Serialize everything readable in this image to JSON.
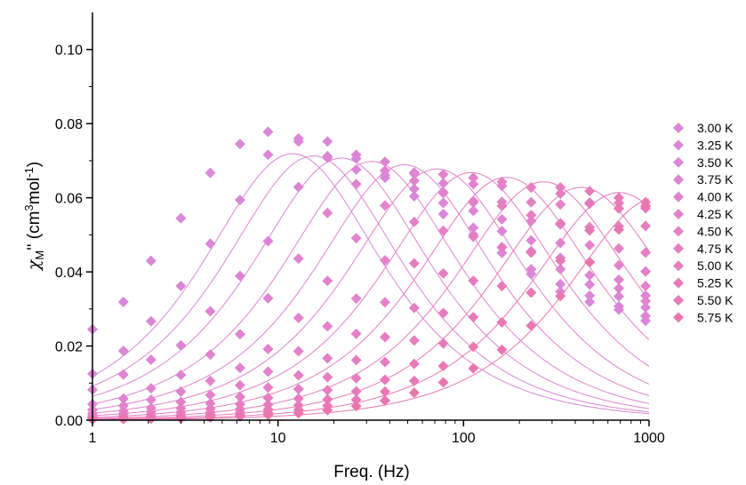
{
  "chart_data": {
    "type": "scatter",
    "title": "",
    "xlabel": "Freq. (Hz)",
    "ylabel": {
      "chi": "χ",
      "sub_m": "M",
      "primes": "''",
      "unit_open": " (cm",
      "sup_3": "3",
      "unit_mid": "mol",
      "sup_minus1": "-1",
      "unit_close": ")"
    },
    "x_scale": "log",
    "xlim": [
      1,
      1000
    ],
    "ylim": [
      0,
      0.11
    ],
    "x_ticks": [
      1,
      10,
      100,
      1000
    ],
    "x_tick_labels": [
      "1",
      "10",
      "100",
      "1000"
    ],
    "y_ticks": [
      0,
      0.02,
      0.04,
      0.06,
      0.08,
      0.1
    ],
    "y_tick_labels": [
      "0.00",
      "0.02",
      "0.04",
      "0.06",
      "0.08",
      "0.10"
    ],
    "grid": false,
    "legend_position": "right",
    "marker": "diamond",
    "x": [
      1,
      1.468,
      2.069,
      2.995,
      4.318,
      6.241,
      8.841,
      12.9,
      18.48,
      26.4,
      37.71,
      54.21,
      77.77,
      112.9,
      161,
      231.4,
      332.6,
      478.2,
      687.1,
      957.4
    ],
    "series": [
      {
        "name": "3.00 K",
        "color": "#d987d9",
        "points": [
          0.0245,
          0.0319,
          0.043,
          0.0545,
          0.0667,
          0.0745,
          0.0778,
          0.076,
          0.0752,
          0.0706,
          0.0661,
          0.0604,
          0.0556,
          0.0501,
          0.0451,
          0.0394,
          0.0347,
          0.0319,
          0.0298,
          0.0268
        ]
      },
      {
        "name": "3.25 K",
        "color": "#db86d6",
        "points": [
          0.0125,
          0.0187,
          0.0267,
          0.0362,
          0.0476,
          0.0594,
          0.0716,
          0.0752,
          0.0712,
          0.0676,
          0.0654,
          0.0624,
          0.0586,
          0.0519,
          0.0467,
          0.0407,
          0.0367,
          0.0336,
          0.0307,
          0.0281
        ]
      },
      {
        "name": "3.50 K",
        "color": "#dd85d3",
        "points": [
          0.0082,
          0.0123,
          0.0163,
          0.0202,
          0.0294,
          0.0389,
          0.0483,
          0.0629,
          0.0708,
          0.0716,
          0.0697,
          0.0665,
          0.0613,
          0.0565,
          0.051,
          0.0456,
          0.0407,
          0.0366,
          0.0334,
          0.0304
        ]
      },
      {
        "name": "3.75 K",
        "color": "#df84d0",
        "points": [
          0.0043,
          0.0058,
          0.0086,
          0.0122,
          0.0177,
          0.0232,
          0.0329,
          0.0436,
          0.0559,
          0.0637,
          0.0673,
          0.0668,
          0.0639,
          0.0587,
          0.0542,
          0.0485,
          0.0438,
          0.0391,
          0.0356,
          0.0321
        ]
      },
      {
        "name": "4.00 K",
        "color": "#e183cd",
        "points": [
          0.0028,
          0.0039,
          0.0055,
          0.0077,
          0.0106,
          0.0141,
          0.0192,
          0.0276,
          0.0376,
          0.0491,
          0.0579,
          0.0646,
          0.0663,
          0.0637,
          0.0589,
          0.0537,
          0.0478,
          0.0427,
          0.0379,
          0.0336
        ]
      },
      {
        "name": "4.25 K",
        "color": "#e382ca",
        "points": [
          0.0018,
          0.0025,
          0.0033,
          0.0049,
          0.0068,
          0.0094,
          0.0131,
          0.0186,
          0.0253,
          0.0328,
          0.0431,
          0.0535,
          0.0615,
          0.0654,
          0.0632,
          0.0588,
          0.0528,
          0.0472,
          0.0418,
          0.0362
        ]
      },
      {
        "name": "4.50 K",
        "color": "#e580c6",
        "points": [
          0.0012,
          0.0017,
          0.0023,
          0.0032,
          0.0045,
          0.0063,
          0.0088,
          0.0121,
          0.0167,
          0.0233,
          0.0318,
          0.0423,
          0.0511,
          0.0591,
          0.0643,
          0.0628,
          0.0582,
          0.0521,
          0.0463,
          0.0401
        ]
      },
      {
        "name": "4.75 K",
        "color": "#e67ec2",
        "points": [
          0.0008,
          0.0011,
          0.0016,
          0.0022,
          0.0031,
          0.0043,
          0.006,
          0.0084,
          0.0116,
          0.0162,
          0.0224,
          0.0303,
          0.0396,
          0.0495,
          0.0578,
          0.0628,
          0.0628,
          0.0584,
          0.0523,
          0.0452
        ]
      },
      {
        "name": "5.00 K",
        "color": "#e77cbe",
        "points": [
          0.0005,
          0.0007,
          0.0011,
          0.0015,
          0.0021,
          0.003,
          0.0042,
          0.0058,
          0.0081,
          0.0113,
          0.0157,
          0.0215,
          0.0289,
          0.0376,
          0.0466,
          0.0553,
          0.0611,
          0.0618,
          0.0586,
          0.0524
        ]
      },
      {
        "name": "5.25 K",
        "color": "#e87ab9",
        "points": [
          0.0004,
          0.0005,
          0.0007,
          0.001,
          0.0015,
          0.0021,
          0.0029,
          0.004,
          0.0056,
          0.0078,
          0.0109,
          0.0152,
          0.0207,
          0.0278,
          0.0362,
          0.0452,
          0.0531,
          0.0587,
          0.06,
          0.0572
        ]
      },
      {
        "name": "5.50 K",
        "color": "#e978b4",
        "points": [
          0.0003,
          0.0004,
          0.0005,
          0.0007,
          0.001,
          0.0014,
          0.002,
          0.0028,
          0.0039,
          0.0055,
          0.0077,
          0.0106,
          0.0146,
          0.0198,
          0.0264,
          0.0344,
          0.043,
          0.0512,
          0.0571,
          0.0588
        ]
      },
      {
        "name": "5.75 K",
        "color": "#ea76af",
        "points": [
          0.0002,
          0.0003,
          0.0004,
          0.0005,
          0.0007,
          0.001,
          0.0014,
          0.0019,
          0.0027,
          0.0038,
          0.0053,
          0.0074,
          0.0102,
          0.014,
          0.019,
          0.0255,
          0.0335,
          0.0426,
          0.0514,
          0.0578
        ]
      }
    ],
    "fit_curves": [
      {
        "series": "3.00 K",
        "peak_x": 12.0,
        "peak_y": 0.0719
      },
      {
        "series": "3.25 K",
        "peak_x": 15.5,
        "peak_y": 0.0713
      },
      {
        "series": "3.50 K",
        "peak_x": 22.0,
        "peak_y": 0.0707
      },
      {
        "series": "3.75 K",
        "peak_x": 32.0,
        "peak_y": 0.0698
      },
      {
        "series": "4.00 K",
        "peak_x": 48.0,
        "peak_y": 0.0689
      },
      {
        "series": "4.25 K",
        "peak_x": 72.0,
        "peak_y": 0.0678
      },
      {
        "series": "4.50 K",
        "peak_x": 110.0,
        "peak_y": 0.0668
      },
      {
        "series": "4.75 K",
        "peak_x": 170.0,
        "peak_y": 0.0655
      },
      {
        "series": "5.00 K",
        "peak_x": 270.0,
        "peak_y": 0.0643
      },
      {
        "series": "5.25 K",
        "peak_x": 430.0,
        "peak_y": 0.0628
      },
      {
        "series": "5.50 K",
        "peak_x": 690.0,
        "peak_y": 0.0614
      },
      {
        "series": "5.75 K",
        "peak_x": 1100.0,
        "peak_y": 0.06
      }
    ]
  }
}
